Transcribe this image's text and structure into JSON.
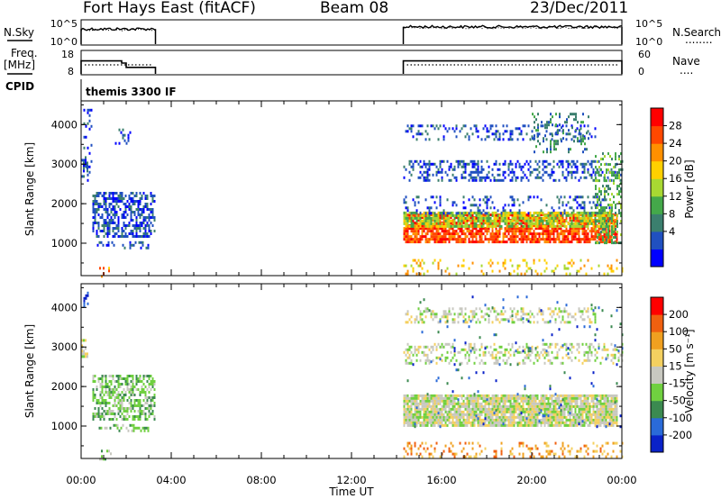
{
  "header": {
    "station": "Fort Hays East (fitACF)",
    "beam": "Beam 08",
    "date": "23/Dec/2011"
  },
  "noise_panel": {
    "left_label": "N.Sky",
    "right_label": "N.Search",
    "left_ticks": [
      "10^5",
      "10^0"
    ],
    "right_ticks": [
      "10^5",
      "10^0"
    ],
    "right_marker": "........"
  },
  "freq_panel": {
    "left_label_1": "Freq.",
    "left_label_2": "[MHz]",
    "right_label": "Nave",
    "right_marker": "....",
    "left_ticks": [
      "18",
      "8"
    ],
    "right_ticks": [
      "60",
      "0"
    ]
  },
  "cpid": {
    "label": "CPID",
    "text": "themis 3300 IF"
  },
  "power_panel": {
    "ylabel": "Slant Range [km]",
    "yticks": [
      "4000",
      "3000",
      "2000",
      "1000"
    ],
    "colorbar_label": "Power [dB]",
    "colorbar_ticks": [
      "28",
      "24",
      "20",
      "16",
      "12",
      "8",
      "4"
    ],
    "colors": [
      "#0000ff",
      "#2050c0",
      "#3b7f6e",
      "#44a84a",
      "#a8d832",
      "#ffd000",
      "#ff9000",
      "#ff4800",
      "#ff0000"
    ]
  },
  "velocity_panel": {
    "ylabel": "Slant Range [km]",
    "yticks": [
      "4000",
      "3000",
      "2000",
      "1000"
    ],
    "colorbar_label": "Velocity [m s⁻¹]",
    "colorbar_ticks": [
      "200",
      "100",
      "50",
      "15",
      "-15",
      "-50",
      "-100",
      "-200"
    ],
    "colors": [
      "#0a22c8",
      "#2a6ad8",
      "#3b8a50",
      "#70d040",
      "#c8c8c0",
      "#f4d060",
      "#f0a020",
      "#f06010",
      "#ff0000"
    ]
  },
  "xaxis": {
    "ticks": [
      "00:00",
      "04:00",
      "08:00",
      "12:00",
      "16:00",
      "20:00",
      "00:00"
    ],
    "label": "Time UT"
  },
  "chart_data": {
    "type": "heatmap",
    "x_range_hours": [
      0,
      24
    ],
    "y_range_km": [
      180,
      4600
    ],
    "data_gap_hours": [
      3.3,
      14.3
    ],
    "frequency_mhz": [
      {
        "start": 0.0,
        "end": 1.8,
        "value": 14.0
      },
      {
        "start": 1.8,
        "end": 2.0,
        "value": 13.0
      },
      {
        "start": 2.0,
        "end": 3.3,
        "value": 11.0
      },
      {
        "start": 14.3,
        "end": 24.0,
        "value": 14.0
      }
    ],
    "nave": [
      {
        "start": 0.0,
        "end": 3.3,
        "value": 25
      },
      {
        "start": 14.3,
        "end": 24.0,
        "value": 25
      }
    ],
    "noise_sky": [
      {
        "start": 0.0,
        "end": 3.3,
        "value": 3.5
      },
      {
        "start": 14.3,
        "end": 24.0,
        "value": 4.0
      }
    ],
    "power_regions": [
      {
        "t0": 0.1,
        "t1": 0.45,
        "r0": 2600,
        "r1": 4400,
        "level": 1,
        "density": 0.15
      },
      {
        "t0": 0.0,
        "t1": 0.3,
        "r0": 2700,
        "r1": 3200,
        "level": 1,
        "density": 0.45
      },
      {
        "t0": 0.5,
        "t1": 3.3,
        "r0": 1200,
        "r1": 2300,
        "level": 1,
        "density": 0.55
      },
      {
        "t0": 0.7,
        "t1": 3.0,
        "r0": 850,
        "r1": 1050,
        "level": 1,
        "density": 0.3
      },
      {
        "t0": 1.5,
        "t1": 2.2,
        "r0": 3500,
        "r1": 3900,
        "level": 1,
        "density": 0.2
      },
      {
        "t0": 0.8,
        "t1": 1.3,
        "r0": 180,
        "r1": 400,
        "level": 6,
        "density": 0.3
      },
      {
        "t0": 14.3,
        "t1": 23.8,
        "r0": 1000,
        "r1": 1750,
        "level": 7,
        "density": 0.8
      },
      {
        "t0": 14.3,
        "t1": 23.6,
        "r0": 1450,
        "r1": 1800,
        "level": 4,
        "density": 0.7
      },
      {
        "t0": 14.3,
        "t1": 23.5,
        "r0": 1750,
        "r1": 2200,
        "level": 1,
        "density": 0.2
      },
      {
        "t0": 14.3,
        "t1": 24.0,
        "r0": 2600,
        "r1": 3100,
        "level": 1,
        "density": 0.35
      },
      {
        "t0": 14.3,
        "t1": 22.8,
        "r0": 3600,
        "r1": 4000,
        "level": 1,
        "density": 0.25
      },
      {
        "t0": 20.0,
        "t1": 22.5,
        "r0": 3300,
        "r1": 4300,
        "level": 2,
        "density": 0.2
      },
      {
        "t0": 22.8,
        "t1": 24.0,
        "r0": 1000,
        "r1": 3300,
        "level": 3,
        "density": 0.4
      },
      {
        "t0": 14.3,
        "t1": 24.0,
        "r0": 200,
        "r1": 600,
        "level": 5,
        "density": 0.15
      }
    ],
    "velocity_regions": [
      {
        "t0": 0.1,
        "t1": 0.4,
        "r0": 4000,
        "r1": 4400,
        "level": 0,
        "density": 0.25
      },
      {
        "t0": 0.0,
        "t1": 0.3,
        "r0": 2700,
        "r1": 3200,
        "level": 4,
        "density": 0.45
      },
      {
        "t0": 0.5,
        "t1": 3.3,
        "r0": 1200,
        "r1": 2300,
        "level": 3,
        "density": 0.55
      },
      {
        "t0": 0.7,
        "t1": 3.0,
        "r0": 850,
        "r1": 1050,
        "level": 3,
        "density": 0.3
      },
      {
        "t0": 0.8,
        "t1": 1.3,
        "r0": 180,
        "r1": 400,
        "level": 3,
        "density": 0.3
      },
      {
        "t0": 14.3,
        "t1": 23.8,
        "r0": 1000,
        "r1": 1800,
        "level": 4,
        "density": 0.9
      },
      {
        "t0": 14.3,
        "t1": 24.0,
        "r0": 2600,
        "r1": 3100,
        "level": 4,
        "density": 0.35
      },
      {
        "t0": 14.3,
        "t1": 22.8,
        "r0": 3600,
        "r1": 4000,
        "level": 4,
        "density": 0.3
      },
      {
        "t0": 14.3,
        "t1": 24.0,
        "r0": 200,
        "r1": 600,
        "level": 6,
        "density": 0.2
      },
      {
        "t0": 14.3,
        "t1": 24.0,
        "r0": 1000,
        "r1": 4300,
        "level": 1,
        "density": 0.02
      }
    ]
  }
}
